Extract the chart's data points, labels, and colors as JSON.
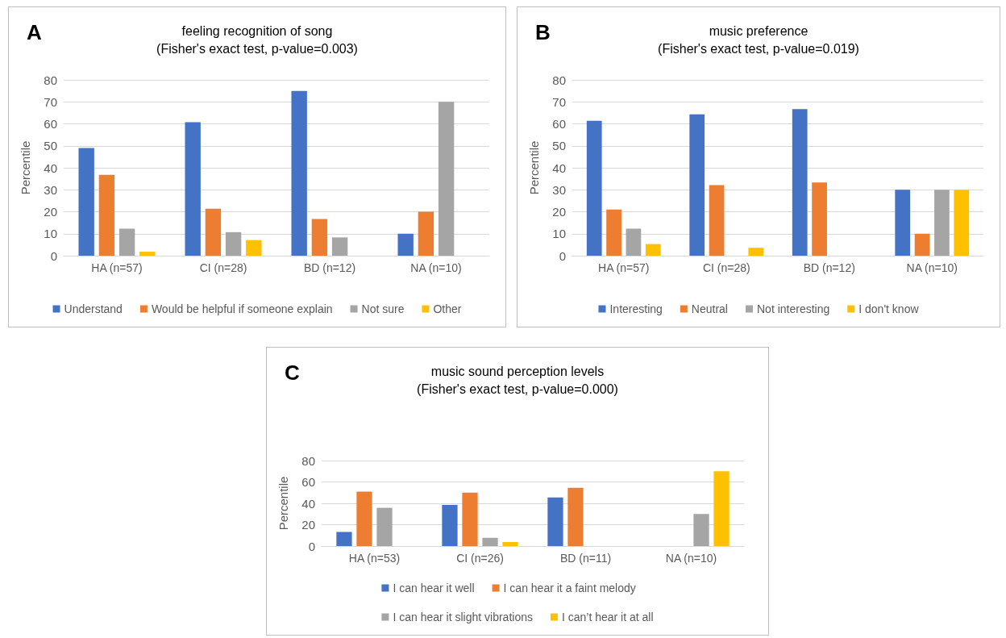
{
  "chart_data": [
    {
      "type": "bar",
      "title": "feeling recognition of song",
      "subtitle": "(Fisher's exact test, p-value=0.003)",
      "annotations": [
        "A"
      ],
      "ylabel": "Percentile",
      "categories": [
        "HA (n=57)",
        "CI (n=28)",
        "BD (n=12)",
        "NA (n=10)"
      ],
      "ylim": [
        0,
        80
      ],
      "yticks": [
        0,
        10,
        20,
        30,
        40,
        50,
        60,
        70,
        80
      ],
      "grid": "y",
      "legend": "bottom",
      "series": [
        {
          "name": "Understand",
          "color": "#4472c4",
          "values": [
            49,
            60.7,
            75,
            10
          ]
        },
        {
          "name": "Would be helpful if someone explain",
          "color": "#ed7d31",
          "values": [
            36.8,
            21.4,
            16.7,
            20
          ]
        },
        {
          "name": "Not sure",
          "color": "#a5a5a5",
          "values": [
            12.3,
            10.7,
            8.3,
            70
          ]
        },
        {
          "name": "Other",
          "color": "#ffc000",
          "values": [
            1.8,
            7.1,
            0,
            0
          ]
        }
      ]
    },
    {
      "type": "bar",
      "title": "music preference",
      "subtitle": "(Fisher's exact test, p-value=0.019)",
      "annotations": [
        "B"
      ],
      "ylabel": "Percentile",
      "categories": [
        "HA (n=57)",
        "CI (n=28)",
        "BD (n=12)",
        "NA (n=10)"
      ],
      "ylim": [
        0,
        80
      ],
      "yticks": [
        0,
        10,
        20,
        30,
        40,
        50,
        60,
        70,
        80
      ],
      "grid": "y",
      "legend": "bottom",
      "series": [
        {
          "name": "Interesting",
          "color": "#4472c4",
          "values": [
            61.4,
            64.3,
            66.7,
            30
          ]
        },
        {
          "name": "Neutral",
          "color": "#ed7d31",
          "values": [
            21,
            32.1,
            33.3,
            10
          ]
        },
        {
          "name": "Not interesting",
          "color": "#a5a5a5",
          "values": [
            12.3,
            0,
            0,
            30
          ]
        },
        {
          "name": "I don't know",
          "color": "#ffc000",
          "values": [
            5.3,
            3.6,
            0,
            30
          ]
        }
      ]
    },
    {
      "type": "bar",
      "title": "music sound perception levels",
      "subtitle": "(Fisher's exact test, p-value=0.000)",
      "annotations": [
        "C"
      ],
      "ylabel": "Percentile",
      "categories": [
        "HA (n=53)",
        "CI (n=26)",
        "BD (n=11)",
        "NA (n=10)"
      ],
      "ylim": [
        0,
        80
      ],
      "yticks": [
        0,
        20,
        40,
        60,
        80
      ],
      "grid": "y",
      "legend": "bottom",
      "series": [
        {
          "name": "I can hear it well",
          "color": "#4472c4",
          "values": [
            13.2,
            38.5,
            45.5,
            0
          ]
        },
        {
          "name": "I can hear it a faint melody",
          "color": "#ed7d31",
          "values": [
            50.9,
            50,
            54.5,
            0
          ]
        },
        {
          "name": "I can hear it slight vibrations",
          "color": "#a5a5a5",
          "values": [
            35.8,
            7.7,
            0,
            30
          ]
        },
        {
          "name": "I can’t hear it at all",
          "color": "#ffc000",
          "values": [
            0,
            3.8,
            0,
            70
          ]
        }
      ]
    }
  ]
}
